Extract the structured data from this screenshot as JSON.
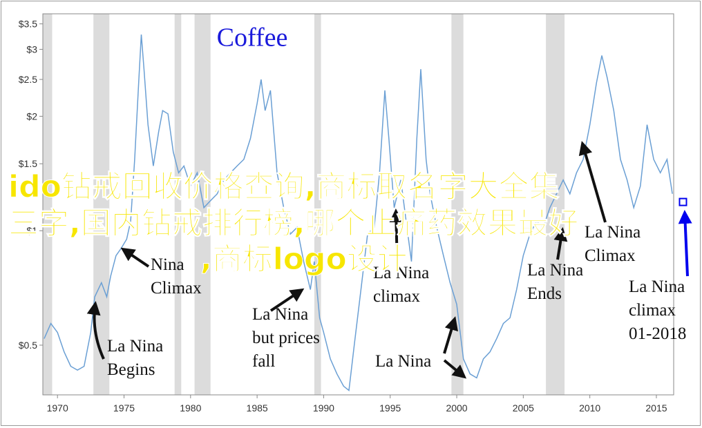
{
  "chart_data": {
    "type": "line",
    "title": "Coffee",
    "log_scale_y": true,
    "xlim": [
      1968.9,
      2016.3
    ],
    "ylim": [
      0.37,
      3.72
    ],
    "xticks": [
      1970,
      1975,
      1980,
      1985,
      1990,
      1995,
      2000,
      2005,
      2010,
      2015
    ],
    "yticks": [
      {
        "value": 0.5,
        "label": "$0.5"
      },
      {
        "value": 1,
        "label": "$1"
      },
      {
        "value": 1.5,
        "label": "$1.5"
      },
      {
        "value": 2,
        "label": "$2"
      },
      {
        "value": 2.5,
        "label": "$2.5"
      },
      {
        "value": 3,
        "label": "$3"
      },
      {
        "value": 3.5,
        "label": "$3.5"
      }
    ],
    "shaded_ranges": [
      [
        1968.9,
        1969.6
      ],
      [
        1972.7,
        1973.9
      ],
      [
        1978.8,
        1979.3
      ],
      [
        1980.3,
        1981.5
      ],
      [
        1989.3,
        1989.8
      ],
      [
        1999.6,
        2000.5
      ],
      [
        2006.7,
        2008.1
      ]
    ],
    "shade_color": "#dcdcdc",
    "series": [
      {
        "color": "#6a9fd4",
        "x": [
          1969.0,
          1969.5,
          1970.0,
          1970.5,
          1971.0,
          1971.5,
          1972.0,
          1972.5,
          1972.8,
          1973.3,
          1973.7,
          1974.0,
          1974.4,
          1974.8,
          1975.2,
          1975.5,
          1975.8,
          1976.1,
          1976.3,
          1976.5,
          1976.8,
          1977.2,
          1977.6,
          1977.9,
          1978.3,
          1978.7,
          1979.1,
          1979.5,
          1980.0,
          1980.5,
          1981.0,
          1981.5,
          1982.0,
          1982.5,
          1983.0,
          1983.5,
          1984.0,
          1984.5,
          1985.0,
          1985.3,
          1985.6,
          1986.0,
          1986.5,
          1987.0,
          1987.5,
          1988.0,
          1988.5,
          1989.0,
          1989.3,
          1989.7,
          1990.0,
          1990.5,
          1991.0,
          1991.5,
          1991.9,
          1992.3,
          1992.8,
          1993.3,
          1993.8,
          1994.2,
          1994.6,
          1994.9,
          1995.3,
          1995.8,
          1996.2,
          1996.6,
          1997.0,
          1997.3,
          1997.7,
          1998.0,
          1998.5,
          1999.0,
          1999.5,
          2000.0,
          2000.5,
          2001.0,
          2001.5,
          2002.0,
          2002.5,
          2003.0,
          2003.5,
          2004.0,
          2004.5,
          2005.0,
          2005.5,
          2006.0,
          2006.5,
          2007.0,
          2007.5,
          2008.0,
          2008.5,
          2009.0,
          2009.5,
          2010.0,
          2010.5,
          2010.9,
          2011.3,
          2011.8,
          2012.3,
          2012.8,
          2013.3,
          2013.8,
          2014.3,
          2014.8,
          2015.3,
          2015.8,
          2016.2
        ],
        "values": [
          0.52,
          0.57,
          0.54,
          0.48,
          0.44,
          0.43,
          0.44,
          0.54,
          0.67,
          0.73,
          0.67,
          0.76,
          0.86,
          0.9,
          0.95,
          1.06,
          1.54,
          2.45,
          3.28,
          2.66,
          1.9,
          1.48,
          1.82,
          2.07,
          2.03,
          1.61,
          1.42,
          1.48,
          1.31,
          1.42,
          1.15,
          1.2,
          1.25,
          1.36,
          1.42,
          1.48,
          1.54,
          1.75,
          2.16,
          2.5,
          2.07,
          2.34,
          1.42,
          1.15,
          0.98,
          1.02,
          0.83,
          0.7,
          0.83,
          0.59,
          0.54,
          0.46,
          0.42,
          0.39,
          0.38,
          0.5,
          0.7,
          0.98,
          1.02,
          1.42,
          2.34,
          1.75,
          1.15,
          1.36,
          1.06,
          0.83,
          1.75,
          2.66,
          1.54,
          1.25,
          1.02,
          0.86,
          0.73,
          0.64,
          0.46,
          0.42,
          0.41,
          0.46,
          0.48,
          0.52,
          0.57,
          0.59,
          0.7,
          0.86,
          0.98,
          1.06,
          1.02,
          1.15,
          1.25,
          1.36,
          1.25,
          1.42,
          1.54,
          1.9,
          2.45,
          2.89,
          2.53,
          2.07,
          1.54,
          1.36,
          1.15,
          1.31,
          1.9,
          1.54,
          1.42,
          1.54,
          1.25
        ]
      }
    ],
    "marker": {
      "x": 2017.0,
      "y": 1.19,
      "color": "#0000ee"
    },
    "annotations": [
      {
        "lines": [
          "Nina",
          "Climax"
        ]
      },
      {
        "lines": [
          "La Nina",
          "Begins"
        ]
      },
      {
        "lines": [
          "La Nina",
          "but prices",
          "fall"
        ]
      },
      {
        "lines": [
          "La Nina",
          "climax"
        ]
      },
      {
        "lines": [
          "La Nina"
        ]
      },
      {
        "lines": [
          "La Nina",
          "Ends"
        ]
      },
      {
        "lines": [
          "La Nina",
          "Climax"
        ]
      },
      {
        "lines": [
          "La Nina",
          "climax",
          "01-2018"
        ],
        "color": "#0000ee"
      }
    ]
  },
  "overlay_text": [
    "ido钻戒回收价格查询,商标取名字大全集",
    "三字,国内钻戒排行榜,哪个止痛药效果最好",
    ",商标logo设计"
  ]
}
